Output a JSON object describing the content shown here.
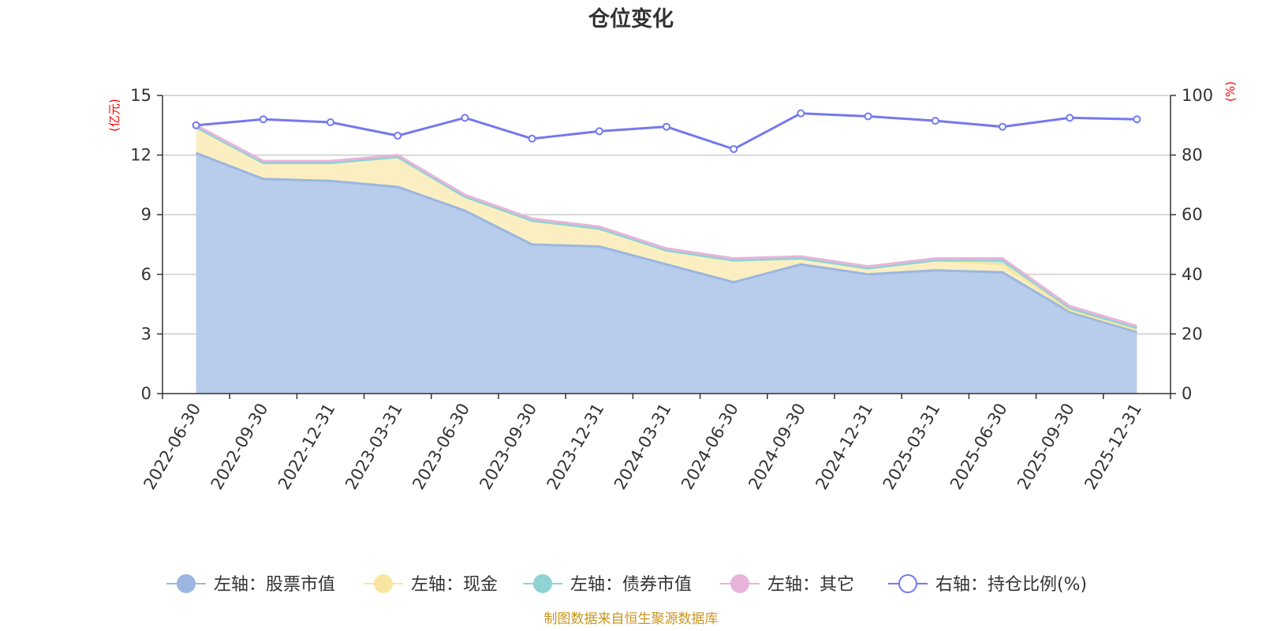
{
  "chart_data": {
    "type": "area",
    "title": "仓位变化",
    "categories": [
      "2022-06-30",
      "2022-09-30",
      "2022-12-31",
      "2023-03-31",
      "2023-06-30",
      "2023-09-30",
      "2023-12-31",
      "2024-03-31",
      "2024-06-30",
      "2024-09-30",
      "2024-12-31",
      "2025-03-31",
      "2025-06-30",
      "2025-09-30",
      "2025-12-31"
    ],
    "left_axis": {
      "unit": "(亿元)",
      "ylim": [
        0,
        15
      ],
      "ticks": [
        "0",
        "3",
        "6",
        "9",
        "12",
        "15"
      ]
    },
    "right_axis": {
      "unit": "(%)",
      "ylim": [
        0,
        100
      ],
      "ticks": [
        "0",
        "20",
        "40",
        "60",
        "80",
        "100"
      ]
    },
    "stack_series": [
      {
        "name": "左轴：股票市值",
        "color": "#9bb7e0",
        "fill": "#b8cceb",
        "values": [
          12.1,
          10.8,
          10.7,
          10.4,
          9.2,
          7.5,
          7.4,
          6.5,
          5.6,
          6.5,
          6.0,
          6.2,
          6.1,
          4.1,
          3.1
        ]
      },
      {
        "name": "左轴：现金",
        "color": "#f8e6a0",
        "fill": "#fbefc2",
        "values": [
          1.3,
          0.8,
          0.9,
          1.5,
          0.7,
          1.2,
          0.9,
          0.7,
          1.1,
          0.3,
          0.3,
          0.5,
          0.4,
          0.1,
          0.1
        ]
      },
      {
        "name": "左轴：债券市值",
        "color": "#8fd3d3",
        "fill": "#bfe6e6",
        "values": [
          0.0,
          0.0,
          0.0,
          0.0,
          0.0,
          0.0,
          0.0,
          0.0,
          0.0,
          0.0,
          0.0,
          0.0,
          0.2,
          0.1,
          0.1
        ]
      },
      {
        "name": "左轴：其它",
        "color": "#e8b4da",
        "fill": "#f2d6ea",
        "values": [
          0.1,
          0.1,
          0.1,
          0.1,
          0.1,
          0.1,
          0.1,
          0.1,
          0.1,
          0.1,
          0.1,
          0.1,
          0.1,
          0.1,
          0.1
        ]
      }
    ],
    "line_series": {
      "name": "右轴：持仓比例(%)",
      "color": "#7479ee",
      "values": [
        90,
        92,
        91,
        86.5,
        92.5,
        85.5,
        88,
        89.5,
        82,
        94,
        93,
        91.5,
        89.5,
        92.5,
        92
      ]
    },
    "grid": true,
    "legend_position": "bottom"
  },
  "source_note": "制图数据来自恒生聚源数据库"
}
